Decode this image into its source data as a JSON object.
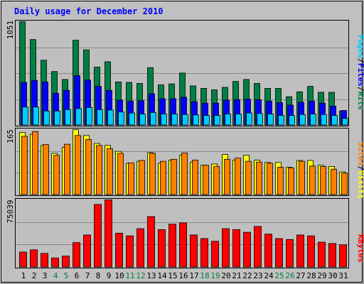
{
  "chart_data": {
    "type": "bar",
    "title": "Daily usage for December 2010",
    "categories": [
      "1",
      "2",
      "3",
      "4",
      "5",
      "6",
      "7",
      "8",
      "9",
      "10",
      "11",
      "12",
      "13",
      "14",
      "15",
      "16",
      "17",
      "18",
      "19",
      "20",
      "21",
      "22",
      "23",
      "24",
      "25",
      "26",
      "27",
      "28",
      "29",
      "30",
      "31"
    ],
    "weekend_days": [
      "4",
      "5",
      "11",
      "12",
      "18",
      "19",
      "25",
      "26"
    ],
    "panels": [
      {
        "name": "top",
        "max_label": "1051",
        "ylim": [
          0,
          1051
        ],
        "legend": [
          "Pages",
          "Files",
          "Hits"
        ],
        "series": [
          {
            "name": "Hits",
            "color": "#008040",
            "values": [
              1051,
              870,
              660,
              545,
              465,
              863,
              765,
              590,
              645,
              440,
              435,
              425,
              585,
              410,
              420,
              530,
              400,
              375,
              360,
              385,
              445,
              465,
              425,
              375,
              375,
              290,
              340,
              395,
              335,
              335,
              145
            ]
          },
          {
            "name": "Files",
            "color": "#0000ff",
            "values": [
              435,
              455,
              440,
              325,
              355,
              505,
              460,
              395,
              355,
              255,
              245,
              250,
              320,
              270,
              270,
              285,
              240,
              225,
              225,
              255,
              260,
              265,
              260,
              245,
              230,
              205,
              235,
              245,
              225,
              195,
              150
            ]
          },
          {
            "name": "Pages",
            "color": "#00ccff",
            "values": [
              185,
              185,
              145,
              145,
              160,
              170,
              180,
              160,
              155,
              135,
              125,
              115,
              130,
              115,
              115,
              110,
              105,
              100,
              100,
              115,
              115,
              125,
              120,
              115,
              100,
              100,
              110,
              115,
              110,
              100,
              70
            ]
          }
        ]
      },
      {
        "name": "middle",
        "max_label": "165",
        "ylim": [
          0,
          165
        ],
        "legend": [
          "Sites",
          "Visits"
        ],
        "series": [
          {
            "name": "Visits",
            "color": "#ffff00",
            "values": [
              158,
              153,
              125,
              105,
              120,
              165,
              150,
              130,
              125,
              110,
              80,
              85,
              107,
              80,
              88,
              100,
              83,
              75,
              78,
              102,
              88,
              100,
              88,
              82,
              82,
              70,
              87,
              87,
              75,
              72,
              58
            ]
          },
          {
            "name": "Sites",
            "color": "#ff8000",
            "values": [
              148,
              160,
              127,
              100,
              128,
              150,
              140,
              125,
              117,
              105,
              81,
              87,
              105,
              85,
              90,
              106,
              88,
              75,
              72,
              90,
              93,
              85,
              83,
              80,
              70,
              68,
              85,
              73,
              72,
              65,
              55
            ]
          }
        ]
      },
      {
        "name": "bottom",
        "max_label": "75039",
        "ylim": [
          0,
          75039
        ],
        "legend": [
          "KBytes"
        ],
        "series": [
          {
            "name": "KBytes",
            "color": "#ff0000",
            "values": [
              17000,
              19500,
              15500,
              10500,
              12500,
              27500,
              36000,
              70000,
              75039,
              38000,
              35000,
              43000,
              56500,
              42000,
              48000,
              49500,
              36000,
              32000,
              29000,
              43000,
              42000,
              39000,
              45500,
              37000,
              32000,
              31000,
              36000,
              35000,
              28000,
              26500,
              25000
            ]
          }
        ]
      }
    ]
  }
}
